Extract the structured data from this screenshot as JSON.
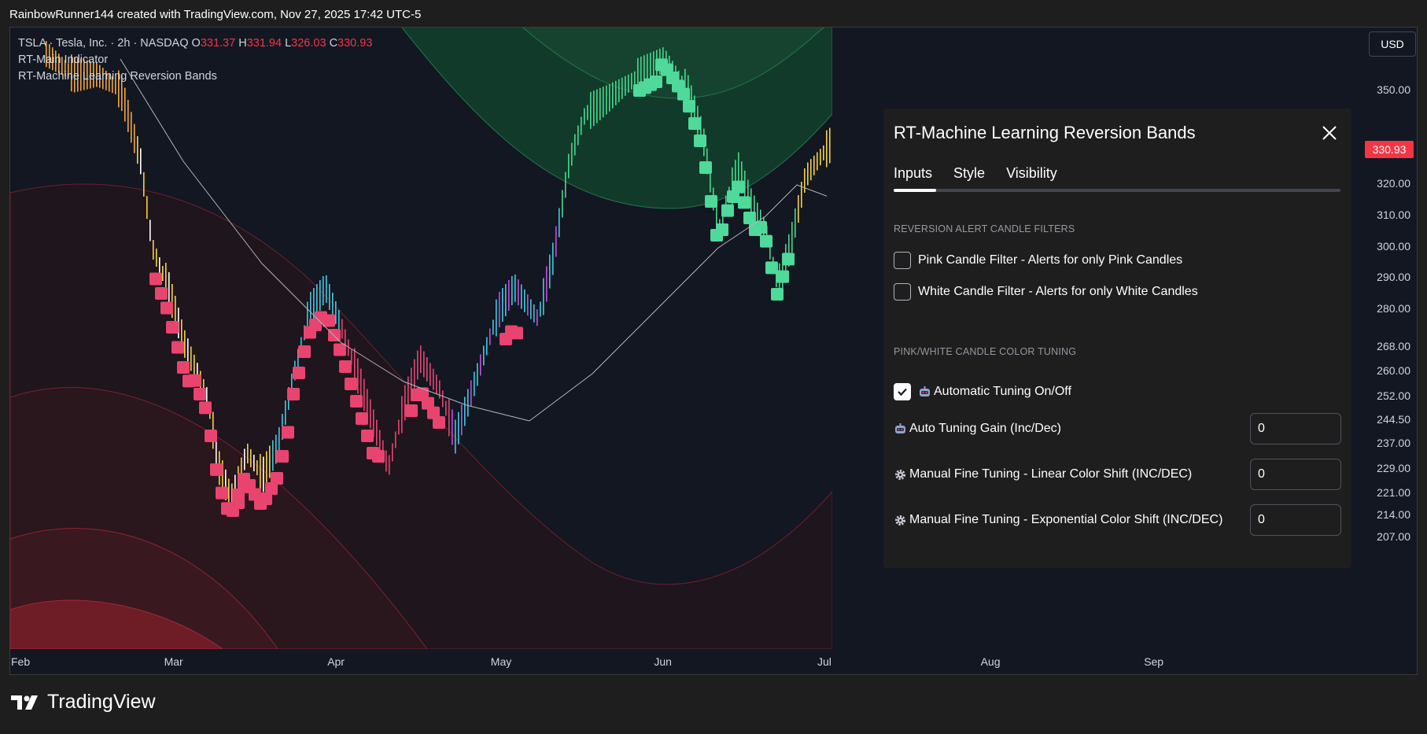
{
  "header": {
    "caption": "RainbowRunner144 created with TradingView.com, Nov 27, 2025 17:42 UTC-5"
  },
  "legend": {
    "symbol_line": "TSLA · Tesla, Inc. · 2h · NASDAQ",
    "o_label": "O",
    "o_value": "331.37",
    "h_label": "H",
    "h_value": "331.94",
    "l_label": "L",
    "l_value": "326.03",
    "c_label": "C",
    "c_value": "330.93",
    "indicator_1": "RT-Main Indicator",
    "indicator_2": "RT-Machine Learning Reversion Bands"
  },
  "currency": "USD",
  "price_axis": {
    "labels": [
      "350.00",
      "320.00",
      "310.00",
      "300.00",
      "290.00",
      "280.00",
      "268.00",
      "260.00",
      "252.00",
      "244.50",
      "237.00",
      "229.00",
      "221.00",
      "214.00",
      "207.00"
    ],
    "last_price": "330.93",
    "last_price_color": "#f23645"
  },
  "time_axis": {
    "labels": [
      "Feb",
      "Mar",
      "Apr",
      "May",
      "Jun",
      "Jul",
      "Aug",
      "Sep"
    ]
  },
  "colors": {
    "background": "#131722",
    "upper_band": "#1a5e3a",
    "lower_band": "#7a1e2a",
    "pink_candle": "#e8446f",
    "green_candle": "#4fd99a",
    "moving_average": "#b2b5be"
  },
  "brand": {
    "name": "TradingView",
    "logo_icon": "tradingview-logo-icon"
  },
  "settings_panel": {
    "title": "RT-Machine Learning Reversion Bands",
    "close_icon": "close-icon",
    "tabs": [
      "Inputs",
      "Style",
      "Visibility"
    ],
    "active_tab": "Inputs",
    "section_1": "REVERSION ALERT CANDLE FILTERS",
    "pink_filter": {
      "label": "Pink Candle Filter - Alerts for only Pink Candles",
      "checked": false
    },
    "white_filter": {
      "label": "White Candle Filter - Alerts for only White Candles",
      "checked": false
    },
    "section_2": "PINK/WHITE CANDLE COLOR TUNING",
    "auto_tuning": {
      "label": "Automatic Tuning On/Off",
      "checked": true,
      "icon": "robot-icon"
    },
    "auto_gain": {
      "label": "Auto Tuning Gain (Inc/Dec)",
      "value": "0",
      "icon": "robot-icon"
    },
    "linear_shift": {
      "label": "Manual Fine Tuning - Linear Color Shift (INC/DEC)",
      "value": "0",
      "icon": "gear-icon"
    },
    "exp_shift": {
      "label": "Manual Fine Tuning - Exponential Color Shift (INC/DEC)",
      "value": "0",
      "icon": "gear-icon"
    }
  }
}
